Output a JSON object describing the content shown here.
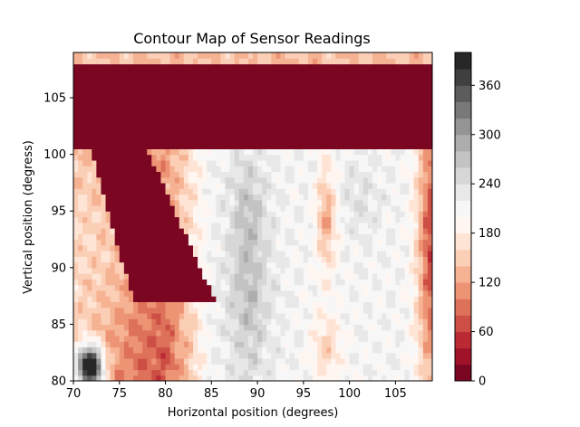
{
  "chart_data": {
    "type": "heatmap",
    "title": "Contour Map of Sensor Readings",
    "xlabel": "Horizontal position (degrees)",
    "ylabel": "Vertical position (degress)",
    "xlim": [
      70,
      109
    ],
    "ylim": [
      80,
      109
    ],
    "x_ticks": [
      70,
      75,
      80,
      85,
      90,
      95,
      100,
      105
    ],
    "y_ticks": [
      80,
      85,
      90,
      95,
      100,
      105
    ],
    "colorbar": {
      "min": 0,
      "max": 400,
      "levels": 20,
      "ticks": [
        0,
        60,
        120,
        180,
        240,
        300,
        360
      ],
      "colormap": "RdGy"
    },
    "grid": false
  }
}
